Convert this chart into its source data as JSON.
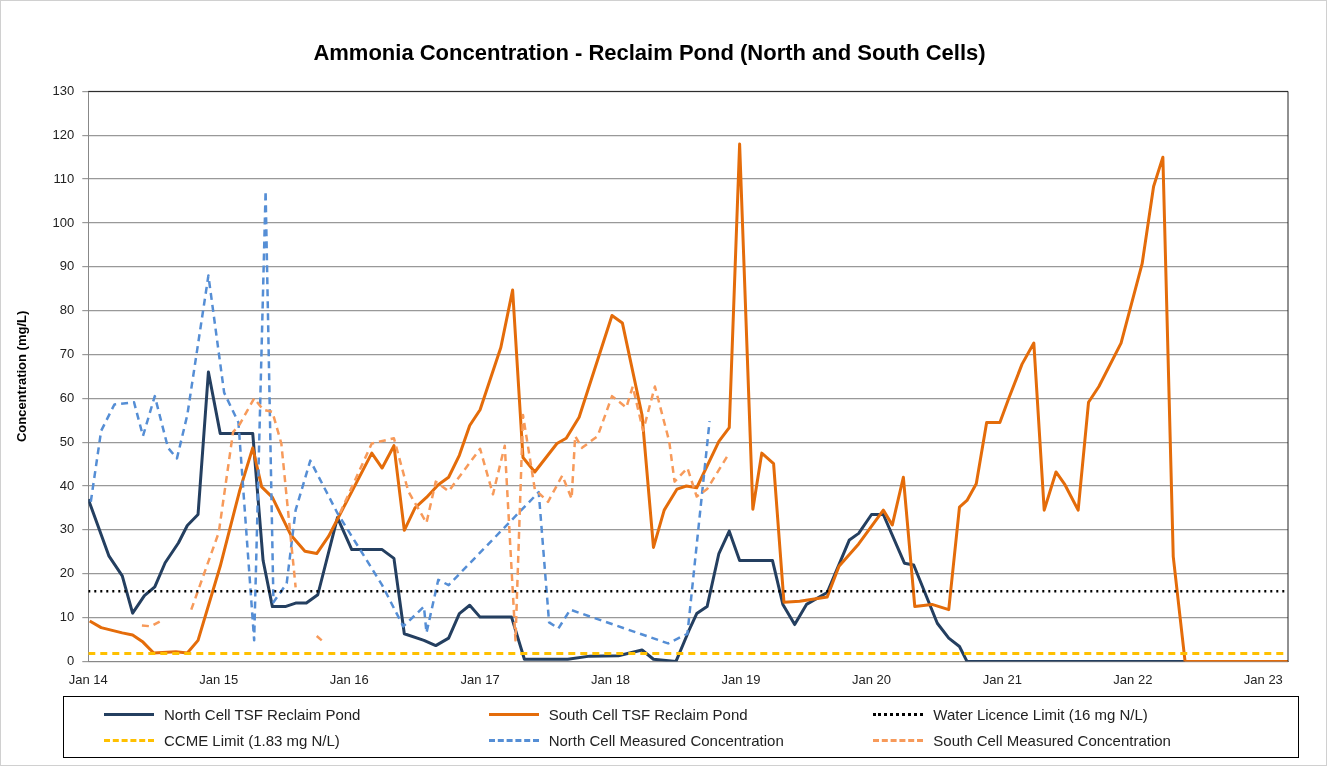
{
  "chart_data": {
    "type": "line",
    "title": "Ammonia Concentration - Reclaim Pond (North and South Cells)",
    "ylabel": "Concentration (mg/L)",
    "xlim": [
      "2014-01-01",
      "2023-03-11"
    ],
    "xticks": [
      {
        "value": "2014-01-01",
        "label": "Jan 14"
      },
      {
        "value": "2015-01-01",
        "label": "Jan 15"
      },
      {
        "value": "2016-01-01",
        "label": "Jan 16"
      },
      {
        "value": "2017-01-01",
        "label": "Jan 17"
      },
      {
        "value": "2018-01-01",
        "label": "Jan 18"
      },
      {
        "value": "2019-01-01",
        "label": "Jan 19"
      },
      {
        "value": "2020-01-01",
        "label": "Jan 20"
      },
      {
        "value": "2021-01-01",
        "label": "Jan 21"
      },
      {
        "value": "2022-01-01",
        "label": "Jan 22"
      },
      {
        "value": "2023-01-01",
        "label": "Jan 23"
      }
    ],
    "ylim": [
      0,
      130
    ],
    "yticks": [
      0,
      10,
      20,
      30,
      40,
      50,
      60,
      70,
      80,
      90,
      100,
      110,
      120,
      130
    ],
    "grid": "y",
    "legend": "bottom",
    "marker": "none",
    "series": [
      {
        "name": "North Cell TSF Reclaim Pond",
        "color": "#243f60",
        "line_style": "solid",
        "x": [
          "2014-01-01",
          "2014-02-28",
          "2014-04-06",
          "2014-05-05",
          "2014-06-07",
          "2014-07-06",
          "2014-08-04",
          "2014-09-10",
          "2014-10-05",
          "2014-11-04",
          "2014-12-03",
          "2015-01-05",
          "2015-04-06",
          "2015-05-05",
          "2015-05-31",
          "2015-07-06",
          "2015-08-04",
          "2015-09-03",
          "2015-10-05",
          "2015-11-29",
          "2016-01-08",
          "2016-04-02",
          "2016-05-05",
          "2016-06-03",
          "2016-07-28",
          "2016-08-30",
          "2016-10-05",
          "2016-11-04",
          "2016-12-03",
          "2017-01-01",
          "2017-03-30",
          "2017-05-05",
          "2017-09-03",
          "2017-11-04",
          "2018-01-23",
          "2018-03-30",
          "2018-05-01",
          "2018-07-03",
          "2018-08-08",
          "2018-08-30",
          "2018-09-28",
          "2018-10-31",
          "2018-11-29",
          "2018-12-28",
          "2019-03-30",
          "2019-04-28",
          "2019-05-31",
          "2019-07-03",
          "2019-08-30",
          "2019-10-31",
          "2019-11-26",
          "2020-01-01",
          "2020-02-03",
          "2020-04-02",
          "2020-04-28",
          "2020-07-03",
          "2020-08-04",
          "2020-09-03",
          "2020-09-24",
          "2022-05-27"
        ],
        "values": [
          37,
          24,
          19.5,
          11,
          15,
          17,
          22.5,
          27,
          31,
          33.5,
          66,
          52,
          52,
          23,
          12.5,
          12.5,
          13.3,
          13.3,
          15.2,
          32.8,
          25.5,
          25.5,
          23.5,
          6.3,
          4.8,
          3.6,
          5.3,
          10.9,
          12.8,
          10.1,
          10.1,
          0.5,
          0.5,
          1.2,
          1.3,
          2.6,
          0.5,
          0,
          7,
          10.9,
          12.5,
          24.6,
          29.7,
          23,
          23,
          13,
          8.4,
          13,
          15.7,
          27.7,
          29.2,
          33.5,
          33.5,
          22.4,
          22,
          8.7,
          5.3,
          3.4,
          0,
          0
        ]
      },
      {
        "name": "South Cell TSF Reclaim Pond",
        "color": "#e46c0a",
        "line_style": "solid",
        "x": [
          "2014-01-05",
          "2014-02-06",
          "2014-04-06",
          "2014-05-05",
          "2014-06-03",
          "2014-07-03",
          "2014-09-03",
          "2014-10-05",
          "2014-11-04",
          "2015-01-05",
          "2015-02-28",
          "2015-04-06",
          "2015-05-01",
          "2015-05-31",
          "2015-07-21",
          "2015-08-30",
          "2015-10-02",
          "2015-11-04",
          "2016-03-04",
          "2016-04-02",
          "2016-05-05",
          "2016-06-03",
          "2016-07-03",
          "2016-08-04",
          "2016-09-06",
          "2016-10-05",
          "2016-11-04",
          "2016-12-03",
          "2017-01-01",
          "2017-02-28",
          "2017-04-02",
          "2017-05-01",
          "2017-06-03",
          "2017-08-04",
          "2017-08-30",
          "2017-10-05",
          "2018-01-05",
          "2018-02-03",
          "2018-03-30",
          "2018-05-01",
          "2018-05-31",
          "2018-07-06",
          "2018-08-01",
          "2018-08-30",
          "2018-10-31",
          "2018-11-29",
          "2018-12-28",
          "2019-02-03",
          "2019-02-28",
          "2019-04-02",
          "2019-05-01",
          "2019-06-14",
          "2019-08-30",
          "2019-10-02",
          "2019-11-26",
          "2020-02-03",
          "2020-02-28",
          "2020-03-30",
          "2020-05-01",
          "2020-06-18",
          "2020-08-04",
          "2020-09-03",
          "2020-09-24",
          "2020-10-20",
          "2020-11-18",
          "2020-12-25",
          "2021-01-19",
          "2021-02-25",
          "2021-03-30",
          "2021-04-28",
          "2021-05-31",
          "2021-06-25",
          "2021-08-01",
          "2021-08-30",
          "2021-09-28",
          "2021-11-29",
          "2022-01-27",
          "2022-02-28",
          "2022-03-26",
          "2022-04-24",
          "2022-05-27",
          "2023-03-11"
        ],
        "values": [
          9.2,
          7.7,
          6.5,
          6,
          4.4,
          1.9,
          2.2,
          1.9,
          4.8,
          21.7,
          38.8,
          48.7,
          39.8,
          37.4,
          28.9,
          25.1,
          24.6,
          28.5,
          47.5,
          44.1,
          49.2,
          29.9,
          35,
          37.4,
          40.3,
          42,
          47,
          53.8,
          57.4,
          71.6,
          84.7,
          46.5,
          43.2,
          49.7,
          50.9,
          55.7,
          78.9,
          77.2,
          56.2,
          26,
          34.5,
          39.3,
          40,
          39.6,
          50.2,
          53.3,
          118,
          34.7,
          47.5,
          45.1,
          13.5,
          13.7,
          14.7,
          21.7,
          26.8,
          34.5,
          31.1,
          42,
          12.5,
          13,
          11.8,
          35.2,
          36.7,
          40.5,
          54.5,
          54.5,
          60,
          67.8,
          72.6,
          34.5,
          43.2,
          40.3,
          34.5,
          59.1,
          62.7,
          72.6,
          90.7,
          108.3,
          115,
          23.9,
          0,
          0
        ]
      },
      {
        "name": "North Cell Measured Concentration",
        "color": "#558ed5",
        "line_style": "dashed",
        "x": [
          "2014-01-08",
          "2014-02-06",
          "2014-03-15",
          "2014-05-09",
          "2014-06-03",
          "2014-07-06",
          "2014-08-12",
          "2014-09-06",
          "2014-10-05",
          "2014-12-03",
          "2015-01-16",
          "2015-02-25",
          "2015-04-10",
          "2015-05-12",
          "2015-06-03",
          "2015-07-10",
          "2015-08-04",
          "2015-09-14",
          "2015-11-29",
          "2016-04-02",
          "2016-05-31",
          "2016-07-28",
          "2016-08-04",
          "2016-09-06",
          "2016-10-05",
          "2017-06-14",
          "2017-07-13",
          "2017-08-08",
          "2017-09-10",
          "2018-06-11",
          "2018-08-04",
          "2018-10-05"
        ],
        "values": [
          36.4,
          52.6,
          58.6,
          59.1,
          51.4,
          60.5,
          48.7,
          46.3,
          56.2,
          88,
          61.3,
          54.5,
          4.8,
          107.3,
          13.5,
          17.8,
          34.5,
          45.8,
          33.8,
          17.4,
          8,
          12.5,
          6.5,
          18.6,
          17.4,
          38.6,
          8.9,
          7.5,
          11.8,
          4.1,
          6.3,
          54.8
        ]
      },
      {
        "name": "South Cell Measured Concentration",
        "color": "#f79a5a",
        "line_style": "dashed",
        "x": [
          "2014-05-31",
          "2014-06-25",
          "2014-08-01",
          "2014-08-04",
          "2014-10-16",
          "2015-01-01",
          "2015-02-10",
          "2015-02-28",
          "2015-04-10",
          "2015-05-05",
          "2015-05-31",
          "2015-06-25",
          "2015-08-04",
          "2015-08-08",
          "2015-10-02",
          "2015-10-16",
          "2015-10-20",
          "2015-12-06",
          "2016-03-04",
          "2016-05-05",
          "2016-06-14",
          "2016-08-04",
          "2016-08-30",
          "2016-10-05",
          "2017-01-01",
          "2017-02-06",
          "2017-03-11",
          "2017-04-10",
          "2017-05-01",
          "2017-06-03",
          "2017-07-10",
          "2017-08-19",
          "2017-09-14",
          "2017-09-24",
          "2017-10-13",
          "2017-11-26",
          "2018-01-05",
          "2018-02-14",
          "2018-03-04",
          "2018-04-02",
          "2018-05-05",
          "2018-06-14",
          "2018-06-29",
          "2018-08-04",
          "2018-08-30",
          "2018-09-28",
          "2018-11-29"
        ],
        "values": [
          8.2,
          8,
          9.6,
          null,
          11.8,
          29.4,
          52.3,
          54,
          60,
          57.4,
          56.9,
          49.7,
          16.9,
          null,
          5.8,
          4.8,
          null,
          33.8,
          49.7,
          50.9,
          38.8,
          31.6,
          41,
          38.8,
          48.5,
          38.1,
          49.2,
          4.8,
          56.2,
          39.3,
          36.4,
          42.4,
          37.1,
          51.4,
          48.7,
          51.4,
          60.5,
          57.9,
          62.7,
          52.6,
          62.7,
          50.2,
          41,
          44.1,
          37.6,
          39.3,
          47.5
        ]
      }
    ],
    "ref_lines": [
      {
        "axis": "y",
        "value": 16,
        "label": "Water Licence Limit (16 mg N/L)",
        "color": "#000000",
        "line_style": "dotted"
      },
      {
        "axis": "y",
        "value": 1.83,
        "label": "CCME Limit (1.83 mg N/L)",
        "color": "#ffc000",
        "line_style": "dashed"
      }
    ]
  }
}
